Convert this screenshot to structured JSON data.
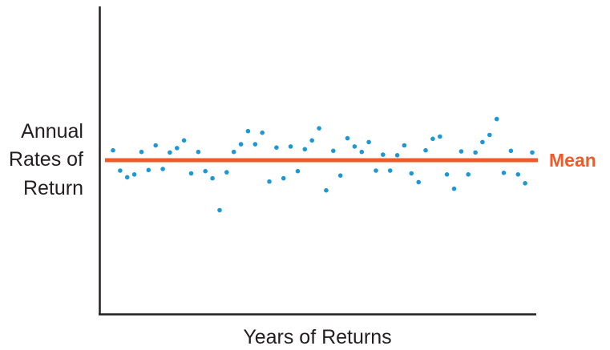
{
  "chart_data": {
    "type": "scatter",
    "xlabel": "Years of Returns",
    "ylabel_lines": [
      "Annual",
      "Rates of",
      "Return"
    ],
    "mean_label": "Mean",
    "mean_value": 0,
    "ylim": [
      -28,
      28
    ],
    "xlim": [
      0,
      60
    ],
    "grid": false,
    "colors": {
      "points": "#1b98d5",
      "mean": "#ef5a28",
      "axis": "#231f20"
    },
    "x": [
      1,
      2,
      3,
      4,
      5,
      6,
      7,
      8,
      9,
      10,
      11,
      12,
      13,
      14,
      15,
      16,
      17,
      18,
      19,
      20,
      21,
      22,
      23,
      24,
      25,
      26,
      27,
      28,
      29,
      30,
      31,
      32,
      33,
      34,
      35,
      36,
      37,
      38,
      39,
      40,
      41,
      42,
      43,
      44,
      45,
      46,
      47,
      48,
      49,
      50,
      51,
      52,
      53,
      54,
      55,
      56,
      57,
      58,
      59,
      60
    ],
    "y": [
      1.8,
      -1.9,
      -3.1,
      -2.6,
      1.5,
      -1.8,
      2.7,
      -1.6,
      1.4,
      2.2,
      3.6,
      -2.4,
      1.5,
      -2.0,
      -3.3,
      -9.1,
      -2.2,
      1.5,
      2.9,
      5.3,
      2.9,
      5.0,
      -3.9,
      2.3,
      -3.3,
      2.5,
      -2.0,
      2.0,
      3.6,
      5.8,
      -5.5,
      1.7,
      -2.8,
      4.0,
      2.5,
      1.5,
      3.3,
      -1.9,
      1.0,
      -1.9,
      0.9,
      2.7,
      -2.4,
      -4.0,
      1.8,
      3.9,
      4.3,
      -2.6,
      -5.2,
      1.6,
      -2.6,
      1.4,
      3.3,
      4.6,
      7.5,
      -2.3,
      1.7,
      -2.6,
      -4.2,
      1.4
    ],
    "series": [
      {
        "name": "",
        "kind": "points"
      }
    ]
  }
}
